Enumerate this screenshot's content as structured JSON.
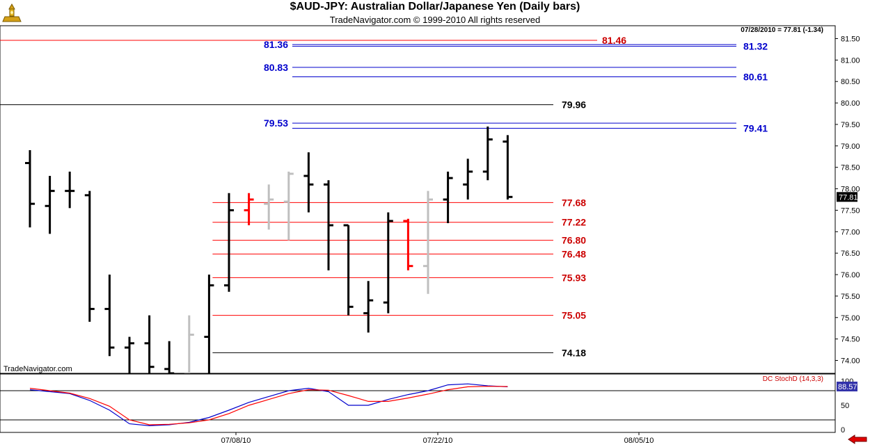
{
  "header": {
    "title": "$AUD-JPY:  Australian Dollar/Japanese Yen  (Daily bars)",
    "subtitle": "TradeNavigator.com © 1999-2010 All rights reserved",
    "last_quote": "07/28/2010 = 77.81 (-1.34)",
    "watermark": "TradeNavigator.com"
  },
  "colors": {
    "up": "#000000",
    "fade": "#bfbfbf",
    "signal": "#ff0000",
    "blue": "#0000cc",
    "red": "#cc0000"
  },
  "icons": {
    "logo": "gold-trophy-icon",
    "scroll": "red-left-arrow-icon"
  },
  "chart_data": [
    {
      "type": "ohlc",
      "title": "$AUD-JPY:  Australian Dollar/Japanese Yen  (Daily bars)",
      "ylim": [
        73.7,
        81.8
      ],
      "y_ticks": [
        "74.00",
        "74.50",
        "75.00",
        "75.50",
        "76.00",
        "76.50",
        "77.00",
        "77.50",
        "78.00",
        "78.50",
        "79.00",
        "79.50",
        "80.00",
        "80.50",
        "81.00",
        "81.50"
      ],
      "x_ticks": [
        "07/08/10",
        "07/22/10",
        "08/05/10"
      ],
      "last_price_label": "77.81",
      "bars": [
        {
          "o": 78.6,
          "h": 78.9,
          "l": 77.1,
          "c": 77.65,
          "color": "black"
        },
        {
          "o": 77.6,
          "h": 78.3,
          "l": 76.95,
          "c": 77.95,
          "color": "black"
        },
        {
          "o": 77.95,
          "h": 78.4,
          "l": 77.55,
          "c": 77.95,
          "color": "black"
        },
        {
          "o": 77.85,
          "h": 77.95,
          "l": 74.9,
          "c": 75.2,
          "color": "black"
        },
        {
          "o": 75.2,
          "h": 76.0,
          "l": 74.1,
          "c": 74.3,
          "color": "black"
        },
        {
          "o": 74.3,
          "h": 74.55,
          "l": 73.6,
          "c": 74.4,
          "color": "black"
        },
        {
          "o": 74.4,
          "h": 75.05,
          "l": 73.6,
          "c": 73.85,
          "color": "black"
        },
        {
          "o": 73.8,
          "h": 74.45,
          "l": 73.6,
          "c": 73.7,
          "color": "black"
        },
        {
          "o": 73.7,
          "h": 75.05,
          "l": 73.6,
          "c": 74.6,
          "color": "gray"
        },
        {
          "o": 74.55,
          "h": 76.0,
          "l": 73.6,
          "c": 75.75,
          "color": "black"
        },
        {
          "o": 75.75,
          "h": 77.9,
          "l": 75.6,
          "c": 77.5,
          "color": "black"
        },
        {
          "o": 77.5,
          "h": 77.9,
          "l": 77.15,
          "c": 77.75,
          "color": "red"
        },
        {
          "o": 77.65,
          "h": 78.1,
          "l": 77.05,
          "c": 77.75,
          "color": "gray"
        },
        {
          "o": 77.7,
          "h": 78.4,
          "l": 76.8,
          "c": 78.35,
          "color": "gray"
        },
        {
          "o": 78.3,
          "h": 78.85,
          "l": 77.45,
          "c": 78.1,
          "color": "black"
        },
        {
          "o": 78.1,
          "h": 78.2,
          "l": 76.1,
          "c": 77.15,
          "color": "black"
        },
        {
          "o": 77.15,
          "h": 77.15,
          "l": 75.05,
          "c": 75.25,
          "color": "black"
        },
        {
          "o": 75.1,
          "h": 75.85,
          "l": 74.65,
          "c": 75.4,
          "color": "black"
        },
        {
          "o": 75.35,
          "h": 77.45,
          "l": 75.1,
          "c": 77.25,
          "color": "black"
        },
        {
          "o": 77.25,
          "h": 77.3,
          "l": 76.1,
          "c": 76.2,
          "color": "red"
        },
        {
          "o": 76.2,
          "h": 77.95,
          "l": 75.55,
          "c": 77.75,
          "color": "gray"
        },
        {
          "o": 77.75,
          "h": 78.4,
          "l": 77.2,
          "c": 78.25,
          "color": "black"
        },
        {
          "o": 78.1,
          "h": 78.7,
          "l": 77.75,
          "c": 78.4,
          "color": "black"
        },
        {
          "o": 78.4,
          "h": 79.45,
          "l": 78.2,
          "c": 79.15,
          "color": "black"
        },
        {
          "o": 79.1,
          "h": 79.25,
          "l": 77.75,
          "c": 77.81,
          "color": "black"
        }
      ],
      "levels": [
        {
          "value": 81.46,
          "label": "81.46",
          "color": "red",
          "start": "left",
          "label_side": "right"
        },
        {
          "value": 81.36,
          "label": "81.36",
          "color": "blue",
          "start": "mid",
          "label_side": "left"
        },
        {
          "value": 81.32,
          "label": "81.32",
          "color": "blue",
          "start": "mid",
          "label_side": "right"
        },
        {
          "value": 80.83,
          "label": "80.83",
          "color": "blue",
          "start": "mid",
          "label_side": "left"
        },
        {
          "value": 80.61,
          "label": "80.61",
          "color": "blue",
          "start": "mid",
          "label_side": "right"
        },
        {
          "value": 79.96,
          "label": "79.96",
          "color": "black",
          "start": "left",
          "label_side": "right"
        },
        {
          "value": 79.53,
          "label": "79.53",
          "color": "blue",
          "start": "mid",
          "label_side": "left"
        },
        {
          "value": 79.41,
          "label": "79.41",
          "color": "blue",
          "start": "mid",
          "label_side": "right"
        },
        {
          "value": 77.68,
          "label": "77.68",
          "color": "red",
          "start": "bar",
          "label_side": "right"
        },
        {
          "value": 77.22,
          "label": "77.22",
          "color": "red",
          "start": "bar",
          "label_side": "right"
        },
        {
          "value": 76.8,
          "label": "76.80",
          "color": "red",
          "start": "bar",
          "label_side": "right"
        },
        {
          "value": 76.48,
          "label": "76.48",
          "color": "red",
          "start": "bar",
          "label_side": "right"
        },
        {
          "value": 75.93,
          "label": "75.93",
          "color": "red",
          "start": "bar",
          "label_side": "right"
        },
        {
          "value": 75.05,
          "label": "75.05",
          "color": "red",
          "start": "bar",
          "label_side": "right"
        },
        {
          "value": 74.18,
          "label": "74.18",
          "color": "black",
          "start": "bar",
          "label_side": "right"
        }
      ]
    },
    {
      "type": "line",
      "title": "DC StochD (14,3,3)",
      "ylim": [
        0,
        100
      ],
      "y_ticks": [
        "100",
        "50",
        "0"
      ],
      "reference_lines": [
        80,
        20
      ],
      "last_value_label": "88.57",
      "series": [
        {
          "color": "blue",
          "values": [
            82,
            78,
            74,
            60,
            40,
            12,
            8,
            10,
            15,
            25,
            40,
            56,
            68,
            80,
            85,
            78,
            50,
            50,
            62,
            72,
            80,
            92,
            94,
            90,
            88
          ]
        },
        {
          "color": "red",
          "values": [
            85,
            80,
            75,
            64,
            48,
            20,
            10,
            11,
            14,
            20,
            33,
            50,
            62,
            74,
            82,
            81,
            70,
            58,
            58,
            65,
            73,
            82,
            88,
            89,
            88.57
          ]
        }
      ]
    }
  ]
}
